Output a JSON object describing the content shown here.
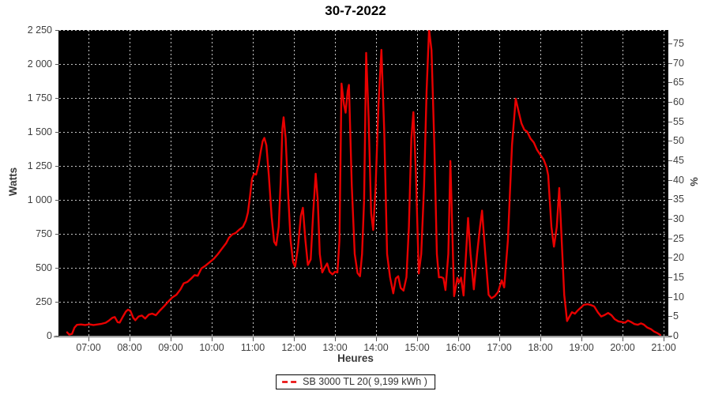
{
  "title": "30-7-2022",
  "axes": {
    "y_left": {
      "label": "Watts",
      "tick_labels": [
        "0",
        "250",
        "500",
        "750",
        "1 000",
        "1 250",
        "1 500",
        "1 750",
        "2 000",
        "2 250"
      ],
      "tick_values": [
        0,
        250,
        500,
        750,
        1000,
        1250,
        1500,
        1750,
        2000,
        2250
      ]
    },
    "y_right": {
      "label": "%",
      "tick_values": [
        0,
        5,
        10,
        15,
        20,
        25,
        30,
        35,
        40,
        45,
        50,
        55,
        60,
        65,
        70,
        75
      ]
    },
    "x": {
      "label": "Heures",
      "tick_labels": [
        "07:00",
        "08:00",
        "09:00",
        "10:00",
        "11:00",
        "12:00",
        "13:00",
        "14:00",
        "15:00",
        "16:00",
        "17:00",
        "18:00",
        "19:00",
        "20:00",
        "21:00"
      ],
      "tick_values": [
        7,
        8,
        9,
        10,
        11,
        12,
        13,
        14,
        15,
        16,
        17,
        18,
        19,
        20,
        21
      ]
    }
  },
  "legend": {
    "series_label": "SB 3000 TL 20( 9,199 kWh )"
  },
  "colors": {
    "background": "#ffffff",
    "plot_background": "#000000",
    "gridline": "#c6c6c6",
    "series": "#e80000",
    "axis_text": "#3f3f3f"
  },
  "chart_data": {
    "type": "line",
    "title": "30-7-2022",
    "xlabel": "Heures",
    "ylabel_left": "Watts",
    "ylabel_right": "%",
    "x_unit": "hour_decimal",
    "xlim": [
      6.29,
      21.1
    ],
    "ylim_left": [
      0,
      2250
    ],
    "ylim_right": [
      0,
      78.4
    ],
    "grid": true,
    "legend_position": "bottom-center",
    "series": [
      {
        "name": "SB 3000 TL 20( 9,199 kWh )",
        "color": "#e80000",
        "points": [
          [
            6.48,
            25
          ],
          [
            6.53,
            8
          ],
          [
            6.6,
            14
          ],
          [
            6.66,
            60
          ],
          [
            6.72,
            80
          ],
          [
            6.82,
            83
          ],
          [
            6.92,
            79
          ],
          [
            7.02,
            85
          ],
          [
            7.12,
            79
          ],
          [
            7.22,
            83
          ],
          [
            7.32,
            88
          ],
          [
            7.42,
            96
          ],
          [
            7.5,
            112
          ],
          [
            7.58,
            132
          ],
          [
            7.64,
            138
          ],
          [
            7.71,
            100
          ],
          [
            7.76,
            97
          ],
          [
            7.84,
            142
          ],
          [
            7.91,
            178
          ],
          [
            7.96,
            192
          ],
          [
            8.02,
            183
          ],
          [
            8.09,
            132
          ],
          [
            8.14,
            114
          ],
          [
            8.22,
            142
          ],
          [
            8.3,
            149
          ],
          [
            8.38,
            127
          ],
          [
            8.47,
            156
          ],
          [
            8.55,
            163
          ],
          [
            8.64,
            151
          ],
          [
            8.74,
            186
          ],
          [
            8.84,
            217
          ],
          [
            8.94,
            251
          ],
          [
            9.04,
            282
          ],
          [
            9.14,
            302
          ],
          [
            9.24,
            342
          ],
          [
            9.32,
            386
          ],
          [
            9.41,
            396
          ],
          [
            9.5,
            421
          ],
          [
            9.58,
            446
          ],
          [
            9.66,
            441
          ],
          [
            9.75,
            496
          ],
          [
            9.85,
            516
          ],
          [
            9.95,
            541
          ],
          [
            10.05,
            566
          ],
          [
            10.15,
            601
          ],
          [
            10.25,
            641
          ],
          [
            10.35,
            681
          ],
          [
            10.42,
            721
          ],
          [
            10.5,
            746
          ],
          [
            10.58,
            756
          ],
          [
            10.67,
            781
          ],
          [
            10.76,
            801
          ],
          [
            10.83,
            846
          ],
          [
            10.88,
            906
          ],
          [
            10.93,
            1025
          ],
          [
            10.98,
            1155
          ],
          [
            11.03,
            1192
          ],
          [
            11.08,
            1186
          ],
          [
            11.14,
            1256
          ],
          [
            11.19,
            1352
          ],
          [
            11.24,
            1432
          ],
          [
            11.28,
            1456
          ],
          [
            11.33,
            1402
          ],
          [
            11.39,
            1180
          ],
          [
            11.46,
            872
          ],
          [
            11.52,
            692
          ],
          [
            11.57,
            666
          ],
          [
            11.63,
            802
          ],
          [
            11.68,
            1152
          ],
          [
            11.72,
            1522
          ],
          [
            11.75,
            1608
          ],
          [
            11.8,
            1452
          ],
          [
            11.86,
            1052
          ],
          [
            11.92,
            702
          ],
          [
            11.98,
            542
          ],
          [
            12.03,
            508
          ],
          [
            12.1,
            652
          ],
          [
            12.17,
            882
          ],
          [
            12.22,
            942
          ],
          [
            12.28,
            702
          ],
          [
            12.34,
            521
          ],
          [
            12.41,
            562
          ],
          [
            12.47,
            902
          ],
          [
            12.53,
            1192
          ],
          [
            12.58,
            1002
          ],
          [
            12.63,
            602
          ],
          [
            12.69,
            466
          ],
          [
            12.75,
            502
          ],
          [
            12.81,
            532
          ],
          [
            12.87,
            471
          ],
          [
            12.94,
            452
          ],
          [
            13.0,
            471
          ],
          [
            13.06,
            466
          ],
          [
            13.11,
            702
          ],
          [
            13.16,
            1856
          ],
          [
            13.22,
            1702
          ],
          [
            13.26,
            1642
          ],
          [
            13.31,
            1802
          ],
          [
            13.34,
            1846
          ],
          [
            13.41,
            1102
          ],
          [
            13.48,
            602
          ],
          [
            13.55,
            461
          ],
          [
            13.61,
            438
          ],
          [
            13.66,
            602
          ],
          [
            13.71,
            1002
          ],
          [
            13.76,
            2082
          ],
          [
            13.82,
            1602
          ],
          [
            13.88,
            902
          ],
          [
            13.93,
            778
          ],
          [
            13.99,
            1102
          ],
          [
            14.06,
            1702
          ],
          [
            14.13,
            2104
          ],
          [
            14.2,
            1502
          ],
          [
            14.27,
            602
          ],
          [
            14.34,
            432
          ],
          [
            14.42,
            312
          ],
          [
            14.48,
            422
          ],
          [
            14.54,
            438
          ],
          [
            14.6,
            352
          ],
          [
            14.67,
            332
          ],
          [
            14.74,
            432
          ],
          [
            14.8,
            802
          ],
          [
            14.86,
            1452
          ],
          [
            14.91,
            1646
          ],
          [
            14.97,
            1202
          ],
          [
            15.04,
            458
          ],
          [
            15.1,
            602
          ],
          [
            15.17,
            1102
          ],
          [
            15.23,
            1802
          ],
          [
            15.29,
            2256
          ],
          [
            15.35,
            2102
          ],
          [
            15.42,
            1402
          ],
          [
            15.48,
            602
          ],
          [
            15.53,
            430
          ],
          [
            15.58,
            432
          ],
          [
            15.64,
            424
          ],
          [
            15.69,
            336
          ],
          [
            15.76,
            602
          ],
          [
            15.81,
            1286
          ],
          [
            15.9,
            291
          ],
          [
            15.98,
            426
          ],
          [
            16.02,
            391
          ],
          [
            16.07,
            428
          ],
          [
            16.13,
            296
          ],
          [
            16.19,
            602
          ],
          [
            16.24,
            866
          ],
          [
            16.3,
            602
          ],
          [
            16.38,
            341
          ],
          [
            16.46,
            602
          ],
          [
            16.53,
            802
          ],
          [
            16.58,
            921
          ],
          [
            16.66,
            602
          ],
          [
            16.74,
            302
          ],
          [
            16.81,
            276
          ],
          [
            16.89,
            291
          ],
          [
            16.97,
            321
          ],
          [
            17.06,
            408
          ],
          [
            17.12,
            356
          ],
          [
            17.21,
            702
          ],
          [
            17.31,
            1402
          ],
          [
            17.4,
            1744
          ],
          [
            17.47,
            1652
          ],
          [
            17.54,
            1562
          ],
          [
            17.61,
            1516
          ],
          [
            17.68,
            1502
          ],
          [
            17.76,
            1452
          ],
          [
            17.84,
            1422
          ],
          [
            17.92,
            1368
          ],
          [
            18.0,
            1332
          ],
          [
            18.08,
            1296
          ],
          [
            18.15,
            1242
          ],
          [
            18.19,
            1182
          ],
          [
            18.27,
            802
          ],
          [
            18.33,
            656
          ],
          [
            18.4,
            802
          ],
          [
            18.46,
            1088
          ],
          [
            18.52,
            702
          ],
          [
            18.58,
            302
          ],
          [
            18.65,
            108
          ],
          [
            18.71,
            142
          ],
          [
            18.77,
            173
          ],
          [
            18.84,
            162
          ],
          [
            18.91,
            186
          ],
          [
            18.98,
            206
          ],
          [
            19.06,
            228
          ],
          [
            19.15,
            232
          ],
          [
            19.23,
            226
          ],
          [
            19.31,
            216
          ],
          [
            19.4,
            172
          ],
          [
            19.48,
            142
          ],
          [
            19.56,
            152
          ],
          [
            19.65,
            168
          ],
          [
            19.73,
            151
          ],
          [
            19.81,
            122
          ],
          [
            19.9,
            106
          ],
          [
            19.98,
            101
          ],
          [
            20.06,
            96
          ],
          [
            20.13,
            112
          ],
          [
            20.21,
            101
          ],
          [
            20.29,
            86
          ],
          [
            20.37,
            81
          ],
          [
            20.45,
            91
          ],
          [
            20.52,
            82
          ],
          [
            20.6,
            61
          ],
          [
            20.69,
            49
          ],
          [
            20.77,
            31
          ],
          [
            20.85,
            19
          ],
          [
            20.92,
            6
          ]
        ]
      }
    ]
  }
}
